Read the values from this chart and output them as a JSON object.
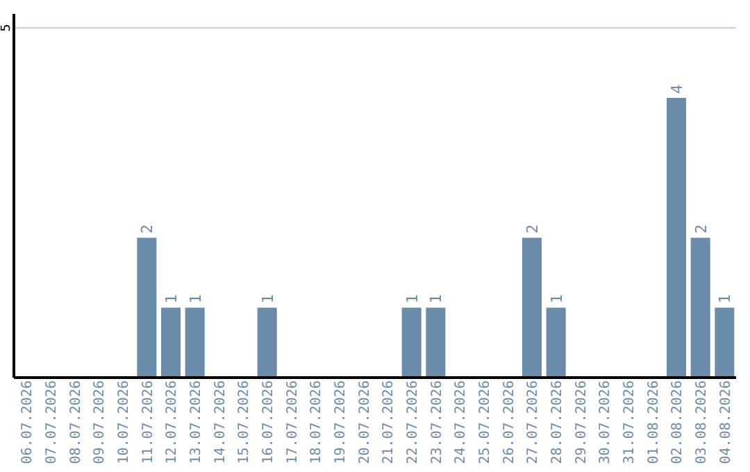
{
  "chart_data": {
    "type": "bar",
    "categories": [
      "06.07.2026",
      "07.07.2026",
      "08.07.2026",
      "09.07.2026",
      "10.07.2026",
      "11.07.2026",
      "12.07.2026",
      "13.07.2026",
      "14.07.2026",
      "15.07.2026",
      "16.07.2026",
      "17.07.2026",
      "18.07.2026",
      "19.07.2026",
      "20.07.2026",
      "21.07.2026",
      "22.07.2026",
      "23.07.2026",
      "24.07.2026",
      "25.07.2026",
      "26.07.2026",
      "27.07.2026",
      "28.07.2026",
      "29.07.2026",
      "30.07.2026",
      "31.07.2026",
      "01.08.2026",
      "02.08.2026",
      "03.08.2026",
      "04.08.2026"
    ],
    "values": [
      0,
      0,
      0,
      0,
      0,
      2,
      1,
      1,
      0,
      0,
      1,
      0,
      0,
      0,
      0,
      0,
      1,
      1,
      0,
      0,
      0,
      2,
      1,
      0,
      0,
      0,
      0,
      4,
      2,
      1
    ],
    "value_labels": [
      null,
      null,
      null,
      null,
      null,
      "2",
      "1",
      "1",
      null,
      null,
      "1",
      null,
      null,
      null,
      null,
      null,
      "1",
      "1",
      null,
      null,
      null,
      "2",
      "1",
      null,
      null,
      null,
      null,
      "4",
      "2",
      "1"
    ],
    "color": "#6a8cab",
    "ylim": [
      0,
      5.2
    ],
    "yticks": [
      5
    ],
    "grid": "y"
  }
}
